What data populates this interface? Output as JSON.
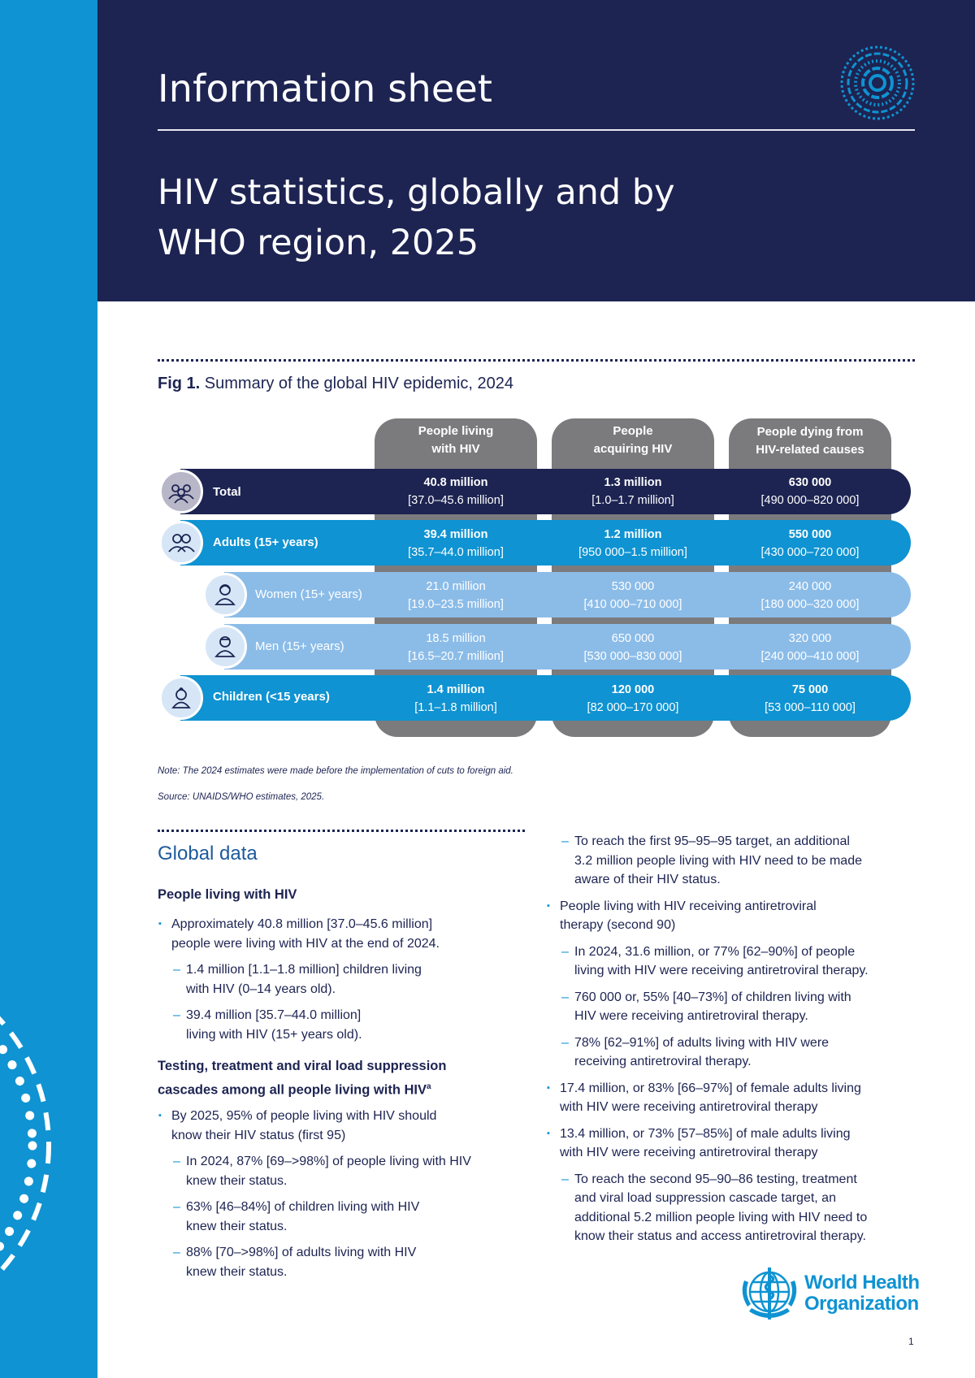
{
  "header": {
    "label": "Information sheet",
    "title_line1": "HIV statistics, globally and by",
    "title_line2": "WHO region, 2025"
  },
  "figure": {
    "title_prefix": "Fig 1.",
    "title": "Summary of the global HIV epidemic, 2024",
    "columns": [
      {
        "line1": "People living",
        "line2": "with HIV"
      },
      {
        "line1": "People",
        "line2": "acquiring HIV"
      },
      {
        "line1": "People dying from",
        "line2": "HIV-related causes"
      }
    ],
    "rows": [
      {
        "label": "Total",
        "values": [
          {
            "main": "40.8 million",
            "range": "[37.0–45.6 million]"
          },
          {
            "main": "1.3 million",
            "range": "[1.0–1.7 million]"
          },
          {
            "main": "630 000",
            "range": "[490 000–820 000]"
          }
        ]
      },
      {
        "label": "Adults (15+ years)",
        "values": [
          {
            "main": "39.4 million",
            "range": "[35.7–44.0 million]"
          },
          {
            "main": "1.2 million",
            "range": "[950 000–1.5 million]"
          },
          {
            "main": "550 000",
            "range": "[430 000–720 000]"
          }
        ]
      },
      {
        "label": "Women (15+ years)",
        "values": [
          {
            "main": "21.0 million",
            "range": "[19.0–23.5 million]"
          },
          {
            "main": "530 000",
            "range": "[410 000–710 000]"
          },
          {
            "main": "240 000",
            "range": "[180 000–320 000]"
          }
        ]
      },
      {
        "label": "Men (15+ years)",
        "values": [
          {
            "main": "18.5 million",
            "range": "[16.5–20.7 million]"
          },
          {
            "main": "650 000",
            "range": "[530 000–830 000]"
          },
          {
            "main": "320 000",
            "range": "[240 000–410 000]"
          }
        ]
      },
      {
        "label": "Children (<15 years)",
        "values": [
          {
            "main": "1.4 million",
            "range": "[1.1–1.8 million]"
          },
          {
            "main": "120 000",
            "range": "[82 000–170 000]"
          },
          {
            "main": "75 000",
            "range": "[53 000–110 000]"
          }
        ]
      }
    ],
    "note": "Note: The 2024 estimates were made before the implementation of cuts to foreign aid.",
    "source": "Source: UNAIDS/WHO estimates, 2025."
  },
  "global_data": {
    "title": "Global data",
    "plhiv_heading": "People living with HIV",
    "plhiv": {
      "b1_l1": "Approximately 40.8 million [37.0–45.6 million]",
      "b1_l2": "people were living with HIV at the end of 2024.",
      "d1_l1": "1.4 million [1.1–1.8 million] children living",
      "d1_l2": "with HIV (0–14 years old).",
      "d2_l1": "39.4 million [35.7–44.0 million]",
      "d2_l2": "living with HIV (15+ years old)."
    },
    "cascade_heading_l1": "Testing, treatment and viral load suppression",
    "cascade_heading_l2": "cascades among all people living with HIV",
    "cascade_sup": "a",
    "cascade": {
      "b1_l1": "By 2025, 95% of people living with HIV should",
      "b1_l2": "know their HIV status (first 95)",
      "d1_l1": "In 2024, 87% [69–>98%] of people living with HIV",
      "d1_l2": "knew their status.",
      "d2_l1": "63% [46–84%] of children living with HIV",
      "d2_l2": "knew their status.",
      "d3_l1": "88% [70–>98%] of adults living with HIV",
      "d3_l2": "knew their status."
    },
    "right": {
      "d0_l1": "To reach the first 95–95–95 target, an additional",
      "d0_l2": "3.2 million people living with HIV need to be made",
      "d0_l3": "aware of their HIV status.",
      "b1_l1": "People living with HIV receiving antiretroviral",
      "b1_l2": "therapy (second 90)",
      "d1_l1": "In 2024, 31.6 million, or 77% [62–90%] of people",
      "d1_l2": "living with HIV were receiving antiretroviral therapy.",
      "d2_l1": "760 000 or, 55% [40–73%] of children living with",
      "d2_l2": "HIV were receiving antiretroviral therapy.",
      "d3_l1": "78% [62–91%] of adults living with HIV were",
      "d3_l2": "receiving antiretroviral therapy.",
      "b2_l1": "17.4 million, or 83% [66–97%] of female adults living",
      "b2_l2": "with HIV were receiving antiretroviral therapy",
      "b3_l1": "13.4 million, or 73% [57–85%] of male adults living",
      "b3_l2": "with HIV were receiving antiretroviral therapy",
      "d4_l1": "To reach the second 95–90–86 testing, treatment",
      "d4_l2": "and viral load suppression cascade target, an",
      "d4_l3": "additional 5.2 million people living with HIV need to",
      "d4_l4": "know their status and access antiretroviral therapy."
    }
  },
  "footer": {
    "org_line1": "World Health",
    "org_line2": "Organization",
    "page_number": "1"
  },
  "colors": {
    "navy": "#1d2452",
    "blue": "#0f93d2",
    "light_blue": "#8bbce8",
    "grey_tab": "#7b7b7e"
  }
}
